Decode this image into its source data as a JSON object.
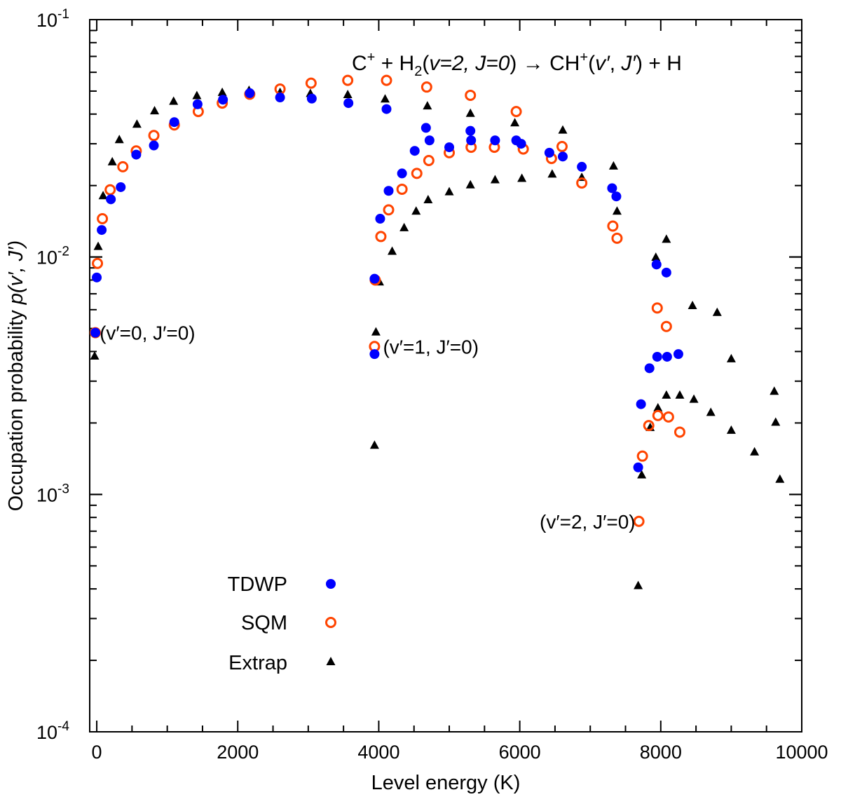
{
  "chart_data": {
    "type": "scatter",
    "title": "C⁺ + H₂(v=2, J=0) → CH⁺(v′, J′) + H",
    "title_parts": {
      "reactant_c": "C",
      "reactant_c_charge": "+",
      "plus1": " + H",
      "h2_sub": "2",
      "h2_state_open": "(",
      "h2_state_v": "v=2, J=0",
      "h2_state_close": ")",
      "arrow": " → CH",
      "product_charge": "+",
      "product_state_open": "(",
      "product_v": "v′",
      "product_comma": ", ",
      "product_j": "J′",
      "product_state_close": ") + H"
    },
    "xlabel": "Level energy (K)",
    "ylabel_prefix": "Occupation probability ",
    "ylabel_italic": "p(v′, J′)",
    "xlim": [
      -100,
      10000
    ],
    "ylim": [
      0.0001,
      0.1
    ],
    "y_scale": "log",
    "x_ticks": [
      0,
      2000,
      4000,
      6000,
      8000,
      10000
    ],
    "x_tick_labels": [
      "0",
      "2000",
      "4000",
      "6000",
      "8000",
      "10000"
    ],
    "y_major_ticks": [
      {
        "base": "10",
        "exp": "-4",
        "value": 0.0001
      },
      {
        "base": "10",
        "exp": "-3",
        "value": 0.001
      },
      {
        "base": "10",
        "exp": "-2",
        "value": 0.01
      },
      {
        "base": "10",
        "exp": "-1",
        "value": 0.1
      }
    ],
    "legend_position": "bottom-left",
    "annotations": [
      {
        "text": "(v′=0, J′=0)",
        "x": 40,
        "y": 0.0048
      },
      {
        "text": "(v′=1, J′=0)",
        "x": 4060,
        "y": 0.0042
      },
      {
        "text": "(v′=2, J′=0)",
        "x": 7640,
        "y": 0.00077
      }
    ],
    "series": [
      {
        "name": "TDWP",
        "marker": "filled-circle",
        "color": "#0000ff",
        "points": [
          [
            -20,
            0.0048
          ],
          [
            0,
            0.0082
          ],
          [
            70,
            0.013
          ],
          [
            200,
            0.0175
          ],
          [
            340,
            0.0197
          ],
          [
            560,
            0.027
          ],
          [
            810,
            0.0295
          ],
          [
            1100,
            0.037
          ],
          [
            1430,
            0.044
          ],
          [
            1790,
            0.046
          ],
          [
            2170,
            0.049
          ],
          [
            2600,
            0.047
          ],
          [
            3050,
            0.0465
          ],
          [
            3570,
            0.0445
          ],
          [
            4110,
            0.042
          ],
          [
            3940,
            0.0039
          ],
          [
            3940,
            0.0081
          ],
          [
            4020,
            0.0145
          ],
          [
            4140,
            0.019
          ],
          [
            4330,
            0.0225
          ],
          [
            4510,
            0.028
          ],
          [
            4670,
            0.035
          ],
          [
            4720,
            0.031
          ],
          [
            5000,
            0.029
          ],
          [
            5300,
            0.034
          ],
          [
            5310,
            0.031
          ],
          [
            5650,
            0.031
          ],
          [
            5950,
            0.031
          ],
          [
            6020,
            0.03
          ],
          [
            6420,
            0.0275
          ],
          [
            6610,
            0.0265
          ],
          [
            6880,
            0.024
          ],
          [
            7310,
            0.0195
          ],
          [
            7370,
            0.018
          ],
          [
            7680,
            0.0013
          ],
          [
            7720,
            0.0024
          ],
          [
            7840,
            0.0034
          ],
          [
            7940,
            0.0093
          ],
          [
            7950,
            0.0038
          ],
          [
            8080,
            0.0086
          ],
          [
            8090,
            0.0038
          ],
          [
            8250,
            0.0039
          ]
        ]
      },
      {
        "name": "SQM",
        "marker": "open-circle",
        "color": "#ff4400",
        "points": [
          [
            -20,
            0.0048
          ],
          [
            10,
            0.0094
          ],
          [
            80,
            0.0145
          ],
          [
            190,
            0.0192
          ],
          [
            370,
            0.024
          ],
          [
            560,
            0.028
          ],
          [
            810,
            0.0325
          ],
          [
            1100,
            0.036
          ],
          [
            1440,
            0.041
          ],
          [
            1780,
            0.0445
          ],
          [
            2170,
            0.0485
          ],
          [
            2600,
            0.051
          ],
          [
            3040,
            0.054
          ],
          [
            3560,
            0.0555
          ],
          [
            4110,
            0.0555
          ],
          [
            3940,
            0.0042
          ],
          [
            3950,
            0.008
          ],
          [
            4030,
            0.0122
          ],
          [
            4140,
            0.0158
          ],
          [
            4330,
            0.0193
          ],
          [
            4540,
            0.0225
          ],
          [
            4710,
            0.0255
          ],
          [
            4680,
            0.052
          ],
          [
            5000,
            0.0275
          ],
          [
            5310,
            0.029
          ],
          [
            5300,
            0.048
          ],
          [
            5640,
            0.029
          ],
          [
            5950,
            0.041
          ],
          [
            6050,
            0.0285
          ],
          [
            6450,
            0.026
          ],
          [
            6600,
            0.0292
          ],
          [
            6880,
            0.0205
          ],
          [
            7320,
            0.0135
          ],
          [
            7380,
            0.012
          ],
          [
            7690,
            0.00077
          ],
          [
            7740,
            0.00145
          ],
          [
            7830,
            0.00195
          ],
          [
            7950,
            0.0061
          ],
          [
            7960,
            0.00215
          ],
          [
            8080,
            0.0051
          ],
          [
            8110,
            0.00212
          ],
          [
            8270,
            0.00183
          ]
        ]
      },
      {
        "name": "Extrap",
        "marker": "filled-triangle",
        "color": "#000000",
        "points": [
          [
            -30,
            0.0038
          ],
          [
            20,
            0.011
          ],
          [
            90,
            0.018
          ],
          [
            220,
            0.025
          ],
          [
            320,
            0.031
          ],
          [
            570,
            0.036
          ],
          [
            820,
            0.041
          ],
          [
            1090,
            0.045
          ],
          [
            1420,
            0.0475
          ],
          [
            1780,
            0.049
          ],
          [
            2160,
            0.05
          ],
          [
            2600,
            0.049
          ],
          [
            3030,
            0.0485
          ],
          [
            3560,
            0.048
          ],
          [
            4090,
            0.046
          ],
          [
            3940,
            0.0016
          ],
          [
            3960,
            0.0048
          ],
          [
            4010,
            0.0078
          ],
          [
            4190,
            0.0105
          ],
          [
            4360,
            0.0132
          ],
          [
            4530,
            0.0155
          ],
          [
            4700,
            0.0173
          ],
          [
            4690,
            0.043
          ],
          [
            5000,
            0.0187
          ],
          [
            5300,
            0.02
          ],
          [
            5300,
            0.04
          ],
          [
            5650,
            0.021
          ],
          [
            5930,
            0.0365
          ],
          [
            6030,
            0.0213
          ],
          [
            6460,
            0.0222
          ],
          [
            6610,
            0.034
          ],
          [
            6880,
            0.0215
          ],
          [
            7330,
            0.024
          ],
          [
            7380,
            0.0155
          ],
          [
            7680,
            0.00041
          ],
          [
            7730,
            0.0012
          ],
          [
            7850,
            0.0019
          ],
          [
            7930,
            0.0099
          ],
          [
            7960,
            0.0023
          ],
          [
            8080,
            0.0118
          ],
          [
            8080,
            0.0026
          ],
          [
            8270,
            0.0026
          ],
          [
            8450,
            0.0062
          ],
          [
            8470,
            0.0025
          ],
          [
            8710,
            0.0022
          ],
          [
            8800,
            0.0058
          ],
          [
            9000,
            0.0037
          ],
          [
            9000,
            0.00185
          ],
          [
            9330,
            0.0015
          ],
          [
            9610,
            0.0027
          ],
          [
            9630,
            0.002
          ],
          [
            9690,
            0.00115
          ]
        ]
      }
    ]
  }
}
